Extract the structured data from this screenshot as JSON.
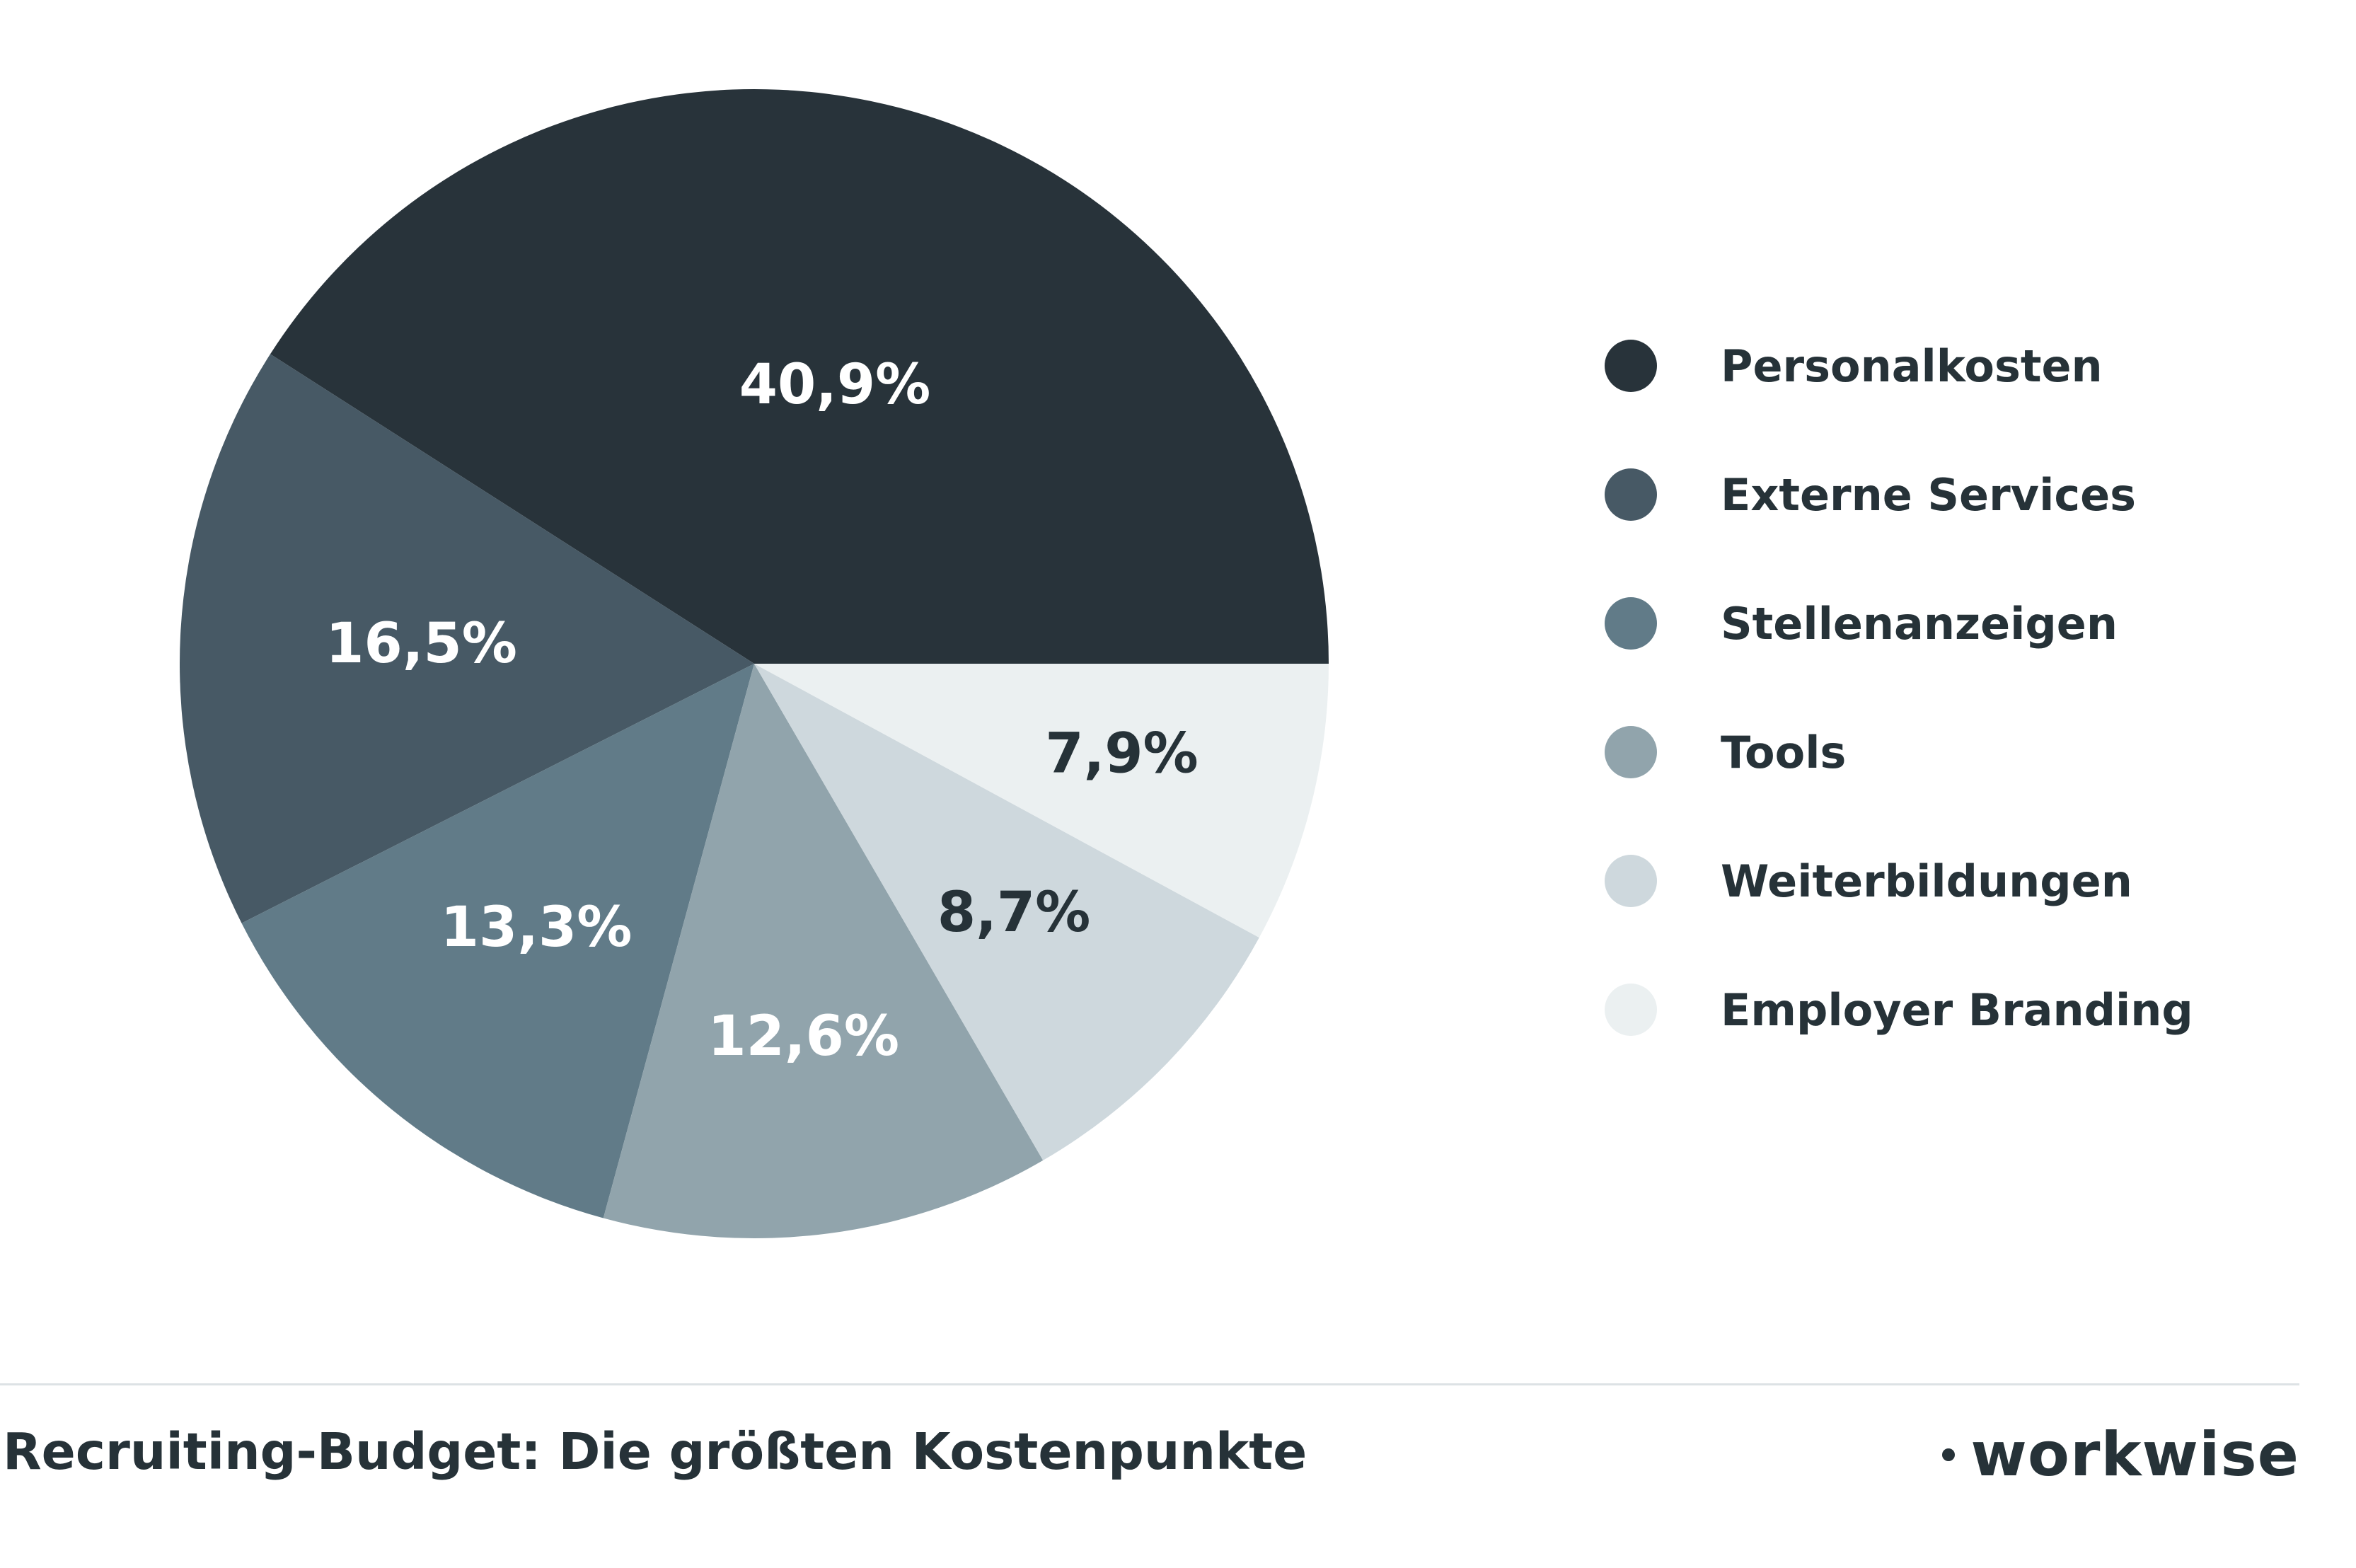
{
  "chart_data": {
    "type": "pie",
    "title": "Recruiting-Budget: Die größten Kostenpunkte",
    "categories": [
      "Personalkosten",
      "Externe Services",
      "Stellenanzeigen",
      "Tools",
      "Weiterbildungen",
      "Employer Branding"
    ],
    "values": [
      40.9,
      16.5,
      13.3,
      12.6,
      8.7,
      7.9
    ],
    "value_labels": [
      "40,9%",
      "16,5%",
      "13,3%",
      "12,6%",
      "8,7%",
      "7,9%"
    ],
    "colors": [
      "#28333a",
      "#475965",
      "#617b88",
      "#91a4ac",
      "#ced8dd",
      "#ebf0f1"
    ],
    "label_colors": [
      "#ffffff",
      "#ffffff",
      "#ffffff",
      "#ffffff",
      "#263238",
      "#263238"
    ],
    "legend_position": "right"
  },
  "legend": {
    "items": [
      {
        "label": "Personalkosten"
      },
      {
        "label": "Externe Services"
      },
      {
        "label": "Stellenanzeigen"
      },
      {
        "label": "Tools"
      },
      {
        "label": "Weiterbildungen"
      },
      {
        "label": "Employer Branding"
      }
    ]
  },
  "footer": {
    "title": "Recruiting-Budget: Die größten Kostenpunkte",
    "brand": "workwise",
    "brand_icon": "workwise-logo-mark"
  }
}
